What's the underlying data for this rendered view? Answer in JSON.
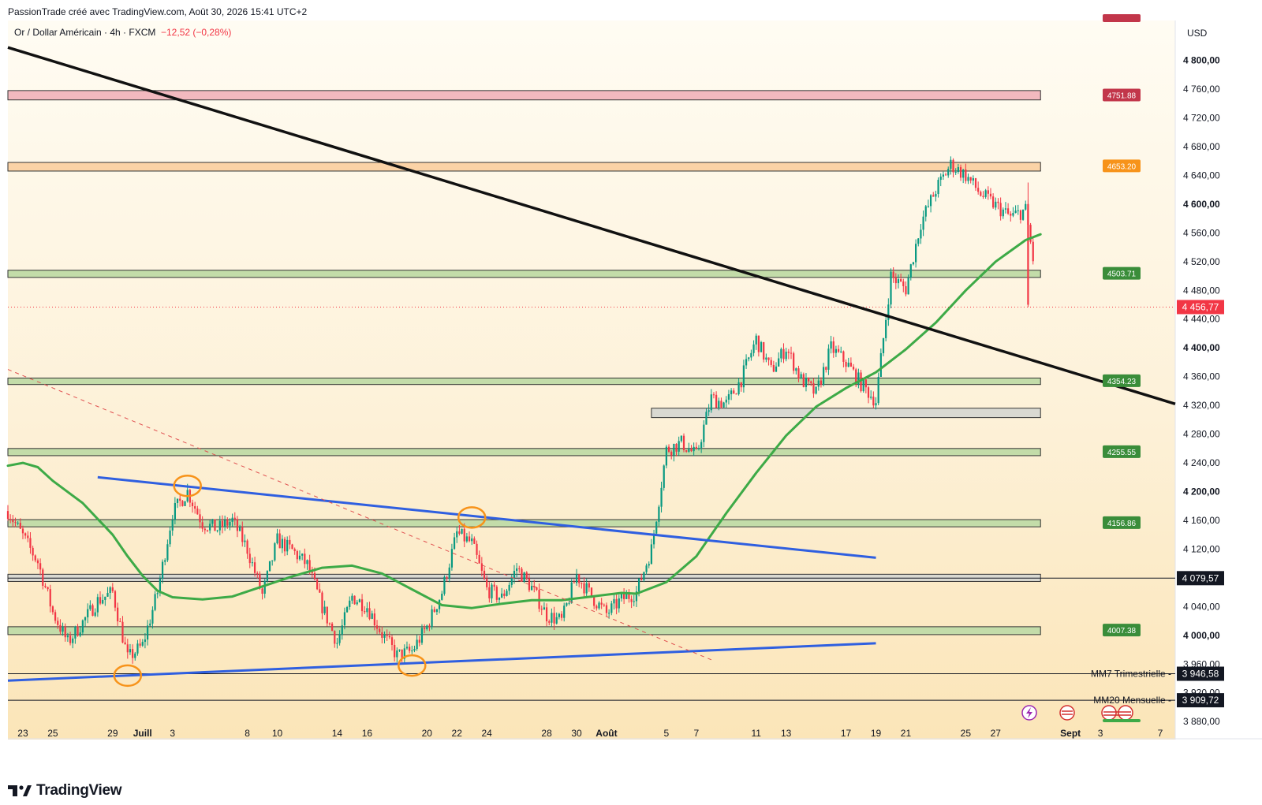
{
  "header": {
    "publisher_line": "PassionTrade créé avec TradingView.com, Août 30, 2026 15:41 UTC+2"
  },
  "chart_data": {
    "type": "candlestick",
    "symbol_line": "Or / Dollar Américain · 4h · FXCM",
    "change_text": "−12,52 (−0,28%)",
    "currency": "USD",
    "y_range": [
      3855,
      4850
    ],
    "y_ticks": [
      {
        "v": 4800,
        "label": "4 800,00",
        "bold": true
      },
      {
        "v": 4760,
        "label": "4 760,00"
      },
      {
        "v": 4720,
        "label": "4 720,00"
      },
      {
        "v": 4680,
        "label": "4 680,00"
      },
      {
        "v": 4640,
        "label": "4 640,00"
      },
      {
        "v": 4600,
        "label": "4 600,00",
        "bold": true
      },
      {
        "v": 4560,
        "label": "4 560,00"
      },
      {
        "v": 4520,
        "label": "4 520,00"
      },
      {
        "v": 4480,
        "label": "4 480,00"
      },
      {
        "v": 4440,
        "label": "4 440,00"
      },
      {
        "v": 4400,
        "label": "4 400,00",
        "bold": true
      },
      {
        "v": 4360,
        "label": "4 360,00"
      },
      {
        "v": 4320,
        "label": "4 320,00"
      },
      {
        "v": 4280,
        "label": "4 280,00"
      },
      {
        "v": 4240,
        "label": "4 240,00"
      },
      {
        "v": 4200,
        "label": "4 200,00",
        "bold": true
      },
      {
        "v": 4160,
        "label": "4 160,00"
      },
      {
        "v": 4120,
        "label": "4 120,00"
      },
      {
        "v": 4040,
        "label": "4 040,00"
      },
      {
        "v": 4000,
        "label": "4 000,00",
        "bold": true
      },
      {
        "v": 3960,
        "label": "3 960,00"
      },
      {
        "v": 3920,
        "label": "3 920,00"
      },
      {
        "v": 3880,
        "label": "3 880,00"
      }
    ],
    "x_ticks": [
      {
        "d": "2026-06-23",
        "label": "23"
      },
      {
        "d": "2026-06-25",
        "label": "25"
      },
      {
        "d": "2026-06-29",
        "label": "29"
      },
      {
        "d": "2026-07-01",
        "label": "Juill",
        "bold": true
      },
      {
        "d": "2026-07-03",
        "label": "3"
      },
      {
        "d": "2026-07-08",
        "label": "8"
      },
      {
        "d": "2026-07-10",
        "label": "10"
      },
      {
        "d": "2026-07-14",
        "label": "14"
      },
      {
        "d": "2026-07-16",
        "label": "16"
      },
      {
        "d": "2026-07-20",
        "label": "20"
      },
      {
        "d": "2026-07-22",
        "label": "22"
      },
      {
        "d": "2026-07-24",
        "label": "24"
      },
      {
        "d": "2026-07-28",
        "label": "28"
      },
      {
        "d": "2026-07-30",
        "label": "30"
      },
      {
        "d": "2026-08-01",
        "label": "Août",
        "bold": true
      },
      {
        "d": "2026-08-05",
        "label": "5"
      },
      {
        "d": "2026-08-07",
        "label": "7"
      },
      {
        "d": "2026-08-11",
        "label": "11"
      },
      {
        "d": "2026-08-13",
        "label": "13"
      },
      {
        "d": "2026-08-17",
        "label": "17"
      },
      {
        "d": "2026-08-19",
        "label": "19"
      },
      {
        "d": "2026-08-21",
        "label": "21"
      },
      {
        "d": "2026-08-25",
        "label": "25"
      },
      {
        "d": "2026-08-27",
        "label": "27"
      },
      {
        "d": "2026-09-01",
        "label": "Sept",
        "bold": true
      },
      {
        "d": "2026-09-03",
        "label": "3"
      },
      {
        "d": "2026-09-07",
        "label": "7"
      }
    ],
    "price_levels": [
      {
        "price": 4751.88,
        "label": "4751.88",
        "color": "#c2364a",
        "zone": [
          4745,
          4758
        ]
      },
      {
        "price": 4653.2,
        "label": "4653.20",
        "color": "#f7931a",
        "zone": [
          4646,
          4658
        ]
      },
      {
        "price": 4503.71,
        "label": "4503.71",
        "color": "#3a8d3a",
        "zone": [
          4498,
          4508
        ]
      },
      {
        "price": 4354.23,
        "label": "4354.23",
        "color": "#3a8d3a",
        "zone": [
          4349,
          4358
        ]
      },
      {
        "price": 4255.55,
        "label": "4255.55",
        "color": "#3a8d3a",
        "zone": [
          4250,
          4260
        ]
      },
      {
        "price": 4156.86,
        "label": "4156.86",
        "color": "#3a8d3a",
        "zone": [
          4151,
          4161
        ]
      },
      {
        "price": 4007.38,
        "label": "4007.38",
        "color": "#3a8d3a",
        "zone": [
          4001,
          4012
        ]
      }
    ],
    "grey_zones": [
      {
        "d0": "2026-08-04",
        "d1": "2026-08-30",
        "range": [
          4303,
          4316
        ]
      },
      {
        "d0": "2026-06-22",
        "d1": "2026-08-30",
        "range": [
          4075,
          4085
        ]
      }
    ],
    "reference_lines": [
      {
        "price": 3946.58,
        "name": "MM7 Trimestrielle",
        "label": "3 946,58"
      },
      {
        "price": 3909.72,
        "name": "MM20 Mensuelle",
        "label": "3 909,72"
      },
      {
        "price": 4079.57,
        "label": "4 079,57"
      }
    ],
    "last_price": {
      "value": 4456.77,
      "label": "4 456,77",
      "color": "#f23645"
    },
    "trendlines": [
      {
        "name": "descending resistance",
        "color": "#111111",
        "points": [
          [
            "2026-06-22",
            4818
          ],
          [
            "2026-09-08",
            4322
          ]
        ]
      },
      {
        "name": "upper blue line",
        "color": "#2f5fe0",
        "points": [
          [
            "2026-06-28",
            4220
          ],
          [
            "2026-08-19",
            4108
          ]
        ]
      },
      {
        "name": "lower blue line",
        "color": "#2f5fe0",
        "points": [
          [
            "2026-06-22",
            3937
          ],
          [
            "2026-08-19",
            3989
          ]
        ]
      },
      {
        "name": "dashed red line",
        "color": "#e05050",
        "dashed": true,
        "points": [
          [
            "2026-06-22",
            4370
          ],
          [
            "2026-08-08",
            3966
          ]
        ]
      }
    ],
    "circled_points": [
      [
        "2026-07-04",
        4208
      ],
      [
        "2026-07-23",
        4164
      ],
      [
        "2026-06-30",
        3944
      ],
      [
        "2026-07-19",
        3958
      ]
    ],
    "moving_average": {
      "color": "#3daa47",
      "points": [
        [
          "2026-06-22",
          4236
        ],
        [
          "2026-06-23",
          4240
        ],
        [
          "2026-06-24",
          4234
        ],
        [
          "2026-06-25",
          4215
        ],
        [
          "2026-06-27",
          4184
        ],
        [
          "2026-06-29",
          4140
        ],
        [
          "2026-06-30",
          4110
        ],
        [
          "2026-07-01",
          4083
        ],
        [
          "2026-07-02",
          4062
        ],
        [
          "2026-07-03",
          4053
        ],
        [
          "2026-07-05",
          4050
        ],
        [
          "2026-07-07",
          4054
        ],
        [
          "2026-07-09",
          4068
        ],
        [
          "2026-07-11",
          4082
        ],
        [
          "2026-07-13",
          4094
        ],
        [
          "2026-07-15",
          4097
        ],
        [
          "2026-07-17",
          4086
        ],
        [
          "2026-07-19",
          4064
        ],
        [
          "2026-07-21",
          4042
        ],
        [
          "2026-07-23",
          4038
        ],
        [
          "2026-07-25",
          4044
        ],
        [
          "2026-07-27",
          4049
        ],
        [
          "2026-07-29",
          4049
        ],
        [
          "2026-07-31",
          4054
        ],
        [
          "2026-08-02",
          4059
        ],
        [
          "2026-08-03",
          4058
        ],
        [
          "2026-08-05",
          4074
        ],
        [
          "2026-08-07",
          4110
        ],
        [
          "2026-08-09",
          4170
        ],
        [
          "2026-08-11",
          4226
        ],
        [
          "2026-08-13",
          4278
        ],
        [
          "2026-08-15",
          4318
        ],
        [
          "2026-08-17",
          4344
        ],
        [
          "2026-08-19",
          4366
        ],
        [
          "2026-08-21",
          4398
        ],
        [
          "2026-08-23",
          4435
        ],
        [
          "2026-08-25",
          4480
        ],
        [
          "2026-08-27",
          4520
        ],
        [
          "2026-08-29",
          4550
        ],
        [
          "2026-08-30",
          4558
        ]
      ]
    },
    "price_path": [
      [
        "2026-06-22",
        4173
      ],
      [
        "2026-06-23",
        4138
      ],
      [
        "2026-06-24",
        4102
      ],
      [
        "2026-06-25",
        4032
      ],
      [
        "2026-06-26",
        3990
      ],
      [
        "2026-06-27",
        4018
      ],
      [
        "2026-06-28",
        4048
      ],
      [
        "2026-06-29",
        4060
      ],
      [
        "2026-06-30",
        3968
      ],
      [
        "2026-07-01",
        3986
      ],
      [
        "2026-07-02",
        4060
      ],
      [
        "2026-07-03",
        4170
      ],
      [
        "2026-07-04",
        4200
      ],
      [
        "2026-07-05",
        4156
      ],
      [
        "2026-07-06",
        4148
      ],
      [
        "2026-07-07",
        4160
      ],
      [
        "2026-07-08",
        4120
      ],
      [
        "2026-07-09",
        4056
      ],
      [
        "2026-07-10",
        4132
      ],
      [
        "2026-07-11",
        4118
      ],
      [
        "2026-07-12",
        4098
      ],
      [
        "2026-07-13",
        4040
      ],
      [
        "2026-07-14",
        3990
      ],
      [
        "2026-07-15",
        4054
      ],
      [
        "2026-07-16",
        4040
      ],
      [
        "2026-07-17",
        4002
      ],
      [
        "2026-07-18",
        3972
      ],
      [
        "2026-07-19",
        3978
      ],
      [
        "2026-07-20",
        4012
      ],
      [
        "2026-07-21",
        4060
      ],
      [
        "2026-07-22",
        4142
      ],
      [
        "2026-07-23",
        4128
      ],
      [
        "2026-07-24",
        4064
      ],
      [
        "2026-07-25",
        4052
      ],
      [
        "2026-07-26",
        4094
      ],
      [
        "2026-07-27",
        4066
      ],
      [
        "2026-07-28",
        4028
      ],
      [
        "2026-07-29",
        4020
      ],
      [
        "2026-07-30",
        4084
      ],
      [
        "2026-07-31",
        4054
      ],
      [
        "2026-08-01",
        4030
      ],
      [
        "2026-08-02",
        4050
      ],
      [
        "2026-08-03",
        4060
      ],
      [
        "2026-08-04",
        4120
      ],
      [
        "2026-08-05",
        4258
      ],
      [
        "2026-08-06",
        4268
      ],
      [
        "2026-08-07",
        4250
      ],
      [
        "2026-08-08",
        4330
      ],
      [
        "2026-08-09",
        4322
      ],
      [
        "2026-08-10",
        4356
      ],
      [
        "2026-08-11",
        4412
      ],
      [
        "2026-08-12",
        4368
      ],
      [
        "2026-08-13",
        4400
      ],
      [
        "2026-08-14",
        4356
      ],
      [
        "2026-08-15",
        4336
      ],
      [
        "2026-08-16",
        4400
      ],
      [
        "2026-08-17",
        4380
      ],
      [
        "2026-08-18",
        4350
      ],
      [
        "2026-08-19",
        4326
      ],
      [
        "2026-08-20",
        4500
      ],
      [
        "2026-08-21",
        4482
      ],
      [
        "2026-08-22",
        4574
      ],
      [
        "2026-08-23",
        4620
      ],
      [
        "2026-08-24",
        4655
      ],
      [
        "2026-08-25",
        4640
      ],
      [
        "2026-08-26",
        4614
      ],
      [
        "2026-08-27",
        4598
      ],
      [
        "2026-08-28",
        4582
      ],
      [
        "2026-08-29",
        4592
      ],
      [
        "2026-08-30",
        4455
      ]
    ]
  }
}
